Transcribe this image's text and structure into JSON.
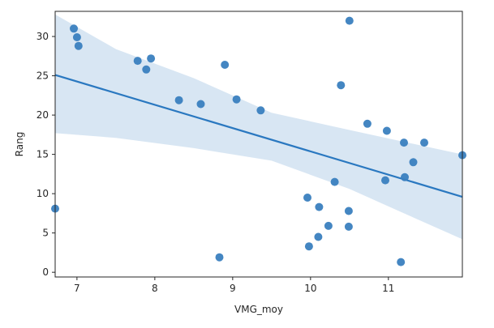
{
  "chart_data": {
    "type": "scatter",
    "title": "",
    "xlabel": "VMG_moy",
    "ylabel": "Rang",
    "xlim": [
      6.72,
      11.95
    ],
    "ylim": [
      -0.6,
      33.2
    ],
    "xticks": [
      7,
      8,
      9,
      10,
      11
    ],
    "yticks": [
      0,
      5,
      10,
      15,
      20,
      25,
      30
    ],
    "grid": false,
    "colors": {
      "points": "#3a7fbf",
      "line": "#2a78c0",
      "band": "#c8dcee"
    },
    "points": [
      {
        "x": 6.72,
        "y": 8.1
      },
      {
        "x": 6.96,
        "y": 31.0
      },
      {
        "x": 7.0,
        "y": 29.9
      },
      {
        "x": 7.02,
        "y": 28.8
      },
      {
        "x": 7.78,
        "y": 26.9
      },
      {
        "x": 7.89,
        "y": 25.8
      },
      {
        "x": 7.95,
        "y": 27.2
      },
      {
        "x": 8.31,
        "y": 21.9
      },
      {
        "x": 8.59,
        "y": 21.4
      },
      {
        "x": 8.83,
        "y": 1.9
      },
      {
        "x": 8.9,
        "y": 26.4
      },
      {
        "x": 9.05,
        "y": 22.0
      },
      {
        "x": 9.36,
        "y": 20.6
      },
      {
        "x": 9.96,
        "y": 9.5
      },
      {
        "x": 9.98,
        "y": 3.3
      },
      {
        "x": 10.1,
        "y": 4.5
      },
      {
        "x": 10.11,
        "y": 8.3
      },
      {
        "x": 10.23,
        "y": 5.9
      },
      {
        "x": 10.31,
        "y": 11.5
      },
      {
        "x": 10.39,
        "y": 23.8
      },
      {
        "x": 10.49,
        "y": 5.8
      },
      {
        "x": 10.49,
        "y": 7.8
      },
      {
        "x": 10.5,
        "y": 32.0
      },
      {
        "x": 10.73,
        "y": 18.9
      },
      {
        "x": 10.96,
        "y": 11.7
      },
      {
        "x": 10.98,
        "y": 18.0
      },
      {
        "x": 11.16,
        "y": 1.3
      },
      {
        "x": 11.2,
        "y": 16.5
      },
      {
        "x": 11.21,
        "y": 12.1
      },
      {
        "x": 11.32,
        "y": 14.0
      },
      {
        "x": 11.46,
        "y": 16.5
      },
      {
        "x": 11.95,
        "y": 14.9
      }
    ],
    "regression": {
      "x": [
        6.72,
        11.95
      ],
      "y": [
        25.1,
        9.6
      ]
    },
    "confidence_band": {
      "x": [
        6.72,
        7.5,
        8.5,
        9.5,
        10.5,
        11.2,
        11.95
      ],
      "upper": [
        32.8,
        28.4,
        24.7,
        20.3,
        18.1,
        16.6,
        15.0
      ],
      "lower": [
        17.7,
        17.1,
        15.8,
        14.2,
        10.6,
        7.5,
        4.2
      ]
    }
  }
}
